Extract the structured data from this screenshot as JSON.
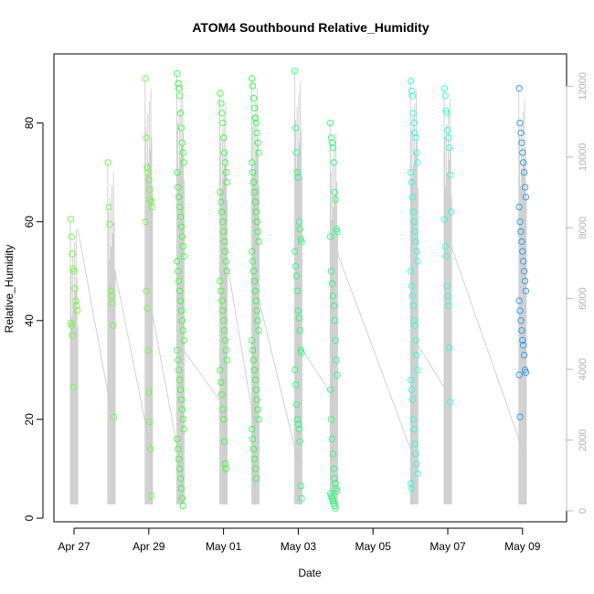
{
  "chart_data": {
    "type": "scatter",
    "title": "ATOM4 Southbound Relative_Humidity",
    "xlabel": "Date",
    "ylabel": "Relative_Humidity",
    "x_ticks": [
      "Apr 27",
      "Apr 29",
      "May 01",
      "May 03",
      "May 05",
      "May 07",
      "May 09"
    ],
    "y_ticks": [
      "0",
      "20",
      "40",
      "60",
      "80"
    ],
    "y2_ticks": [
      "0",
      "2000",
      "4000",
      "6000",
      "8000",
      "10000",
      "12000"
    ],
    "y_range": [
      0,
      90
    ],
    "y2_range": [
      0,
      12000
    ],
    "grid": false,
    "series": [
      {
        "color": "#66ff33",
        "clusters": [
          {
            "day": 0.0,
            "values": [
              60.5,
              57,
              53.5,
              50.5,
              50,
              46.5,
              44,
              43,
              42,
              39.5,
              39,
              37,
              26.5
            ]
          },
          {
            "day": 1.0,
            "values": [
              72,
              63,
              59.5,
              46,
              45,
              43.5,
              39,
              20.5
            ]
          },
          {
            "day": 2.0,
            "values": [
              89,
              77,
              71,
              70,
              68.5,
              66.5,
              64.5,
              64,
              63,
              60,
              46,
              42.5,
              34,
              25.5,
              19.5,
              14,
              4.5
            ]
          }
        ]
      },
      {
        "color": "#33ff33",
        "clusters": [
          {
            "day": 2.85,
            "values": [
              90,
              88,
              87,
              85.5,
              82,
              79,
              76,
              74,
              72,
              70,
              67,
              65,
              63,
              61,
              59,
              57,
              55,
              53,
              52,
              50,
              48,
              46,
              44,
              42,
              40,
              38,
              36,
              34,
              32,
              30,
              28,
              26,
              24,
              22,
              20,
              18,
              16,
              14,
              12,
              10,
              8,
              6,
              4,
              2.5
            ]
          },
          {
            "day": 4.0,
            "values": [
              86,
              84,
              82,
              80,
              77,
              74,
              72,
              70,
              68,
              66,
              64,
              62,
              60,
              58,
              56,
              54,
              52,
              50,
              48,
              46,
              44,
              42,
              40,
              38,
              36,
              34,
              32,
              30,
              27.5,
              25,
              22,
              20,
              15.5,
              11,
              10
            ]
          }
        ]
      },
      {
        "color": "#22ff44",
        "clusters": [
          {
            "day": 4.85,
            "values": [
              89,
              87.5,
              85,
              83,
              81,
              80,
              78,
              76,
              74,
              72,
              70,
              68,
              66,
              64,
              62,
              60,
              58,
              56,
              54,
              52,
              50,
              48,
              46,
              44,
              42,
              40,
              38,
              36,
              34,
              32,
              30,
              28,
              26,
              24,
              22,
              20,
              18,
              16,
              14,
              12,
              10,
              8
            ]
          }
        ]
      },
      {
        "color": "#22ff77",
        "clusters": [
          {
            "day": 6.0,
            "values": [
              90.5,
              79,
              74,
              70,
              69,
              60,
              58.5,
              56.5,
              56,
              54,
              51,
              49,
              46,
              42,
              40.5,
              38,
              34,
              33.5,
              30,
              27,
              23,
              20,
              19,
              18,
              15.5,
              6.5,
              4
            ]
          },
          {
            "day": 6.95,
            "values": [
              80,
              77,
              76,
              75,
              72,
              66,
              64.5,
              58.5,
              58,
              57,
              50,
              47.5,
              45,
              43,
              40,
              36,
              32,
              29,
              26,
              20,
              16,
              13,
              10,
              8,
              7,
              6,
              5.5,
              5,
              4.5,
              4,
              3.5,
              3,
              2.5,
              2
            ]
          }
        ]
      },
      {
        "color": "#22ffdd",
        "clusters": [
          {
            "day": 9.1,
            "values": [
              88.5,
              86.5,
              85.5,
              82,
              80,
              78,
              77,
              74,
              72,
              70,
              68,
              65,
              62,
              60,
              58,
              56,
              54,
              52,
              50,
              47,
              45,
              43,
              40,
              39,
              36,
              33,
              30,
              28,
              26,
              24,
              20,
              18,
              15,
              13,
              11,
              9,
              7,
              6
            ]
          },
          {
            "day": 10.0,
            "values": [
              87,
              85.5,
              82.5,
              82,
              78.5,
              77,
              75,
              69.5,
              62,
              60.5,
              55,
              53,
              47,
              45,
              43,
              34.5,
              23.5
            ]
          }
        ]
      },
      {
        "color": "#2299ee",
        "clusters": [
          {
            "day": 12.0,
            "values": [
              87,
              80,
              78,
              76,
              74,
              72,
              70,
              67,
              65,
              63,
              60,
              58,
              56,
              54,
              52,
              50,
              48,
              46,
              44,
              42,
              40,
              38,
              36,
              35,
              33,
              30,
              29.5,
              29,
              20.5
            ]
          }
        ]
      }
    ],
    "secondary_line_color": "#c8c8c8"
  }
}
